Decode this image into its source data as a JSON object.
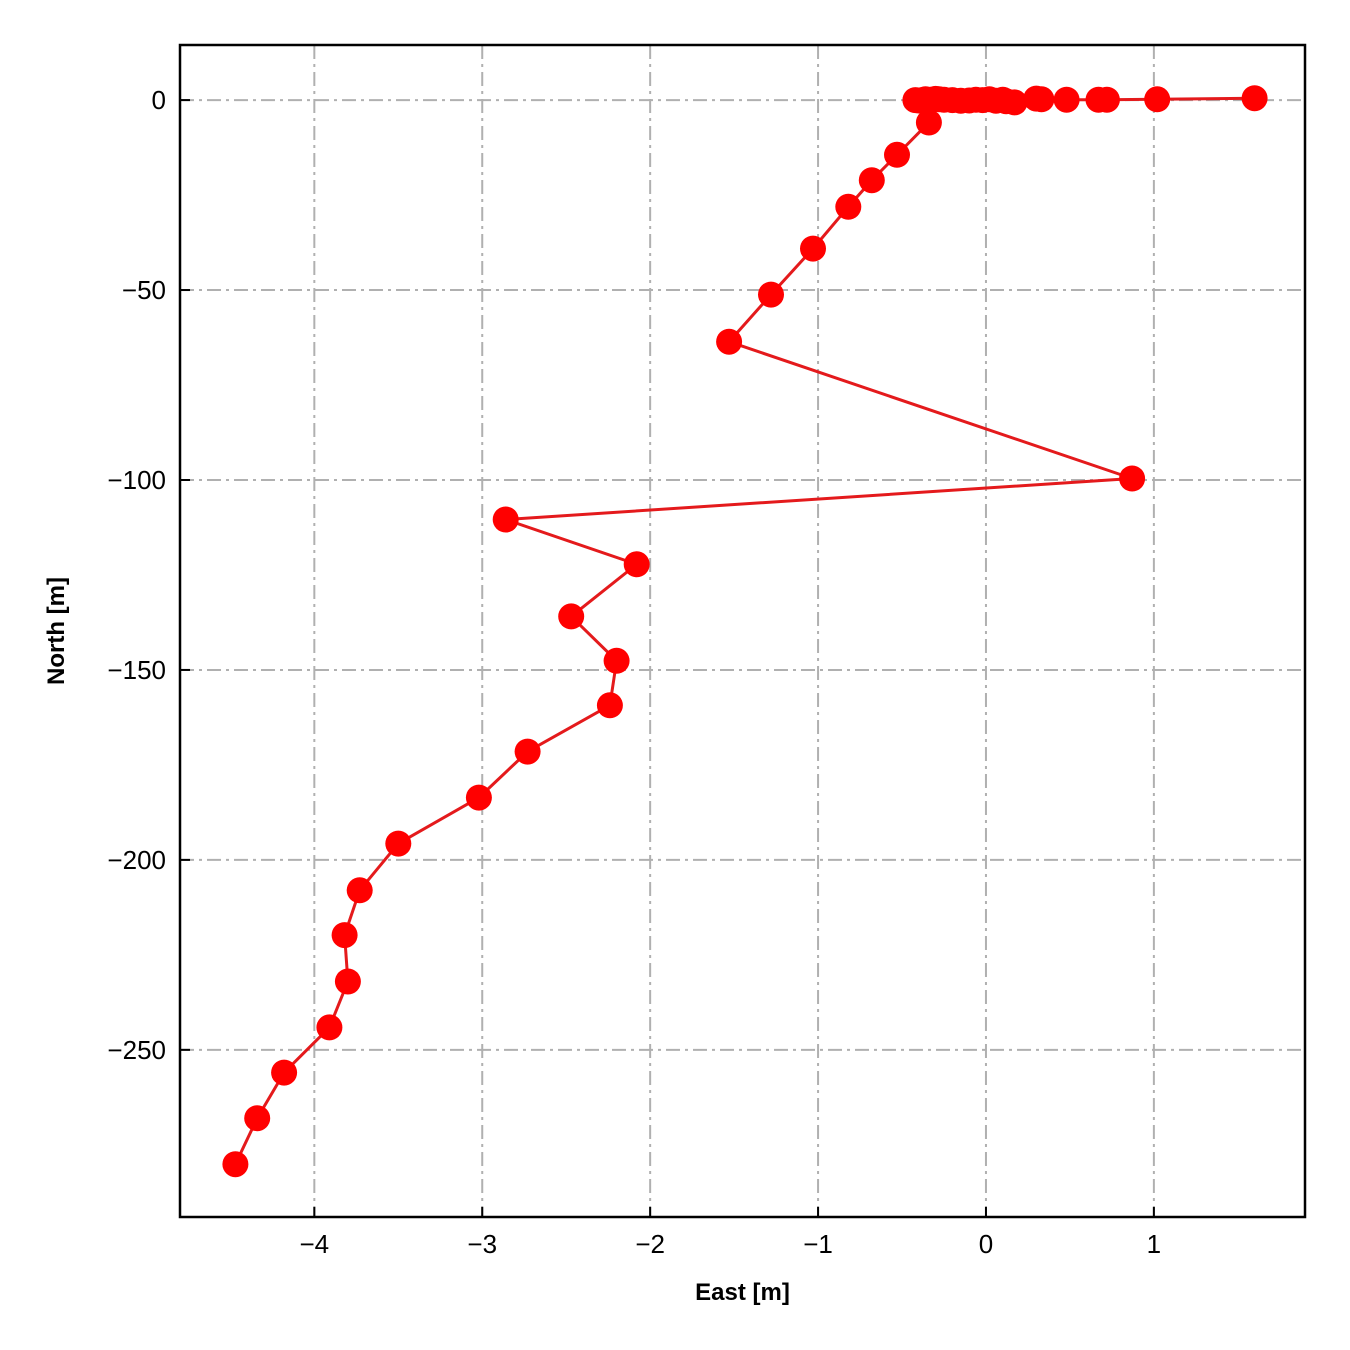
{
  "chart_data": {
    "type": "line",
    "title": "",
    "xlabel": "East [m]",
    "ylabel": "North [m]",
    "xlim": [
      -4.8,
      1.9
    ],
    "ylim": [
      -294,
      14.5
    ],
    "xticks": [
      -4,
      -3,
      -2,
      -1,
      0,
      1
    ],
    "yticks": [
      0,
      -50,
      -100,
      -150,
      -200,
      -250
    ],
    "xtick_labels": [
      "−4",
      "−3",
      "−2",
      "−1",
      "0",
      "1"
    ],
    "ytick_labels": [
      "0",
      "−50",
      "−100",
      "−150",
      "−200",
      "−250"
    ],
    "grid": true,
    "legend": "none",
    "series": [
      {
        "color": "#ff0000",
        "line_color": "#e41a1c",
        "x": [
          1.6,
          1.02,
          0.72,
          0.67,
          0.48,
          0.33,
          0.3,
          0.17,
          0.12,
          0.1,
          0.06,
          0.02,
          -0.02,
          -0.06,
          -0.1,
          -0.15,
          -0.2,
          -0.25,
          -0.28,
          -0.3,
          -0.33,
          -0.36,
          -0.38,
          -0.4,
          -0.42,
          -0.34,
          -0.53,
          -0.68,
          -0.82,
          -1.03,
          -1.28,
          -1.53,
          0.87,
          -2.86,
          -2.08,
          -2.47,
          -2.2,
          -2.24,
          -2.73,
          -3.02,
          -3.5,
          -3.73,
          -3.82,
          -3.8,
          -3.91,
          -4.18,
          -4.34,
          -4.47
        ],
        "y": [
          0.5,
          0.2,
          0.1,
          0.1,
          0.1,
          0.2,
          0.4,
          -0.6,
          -0.3,
          0.1,
          -0.2,
          0.2,
          0.0,
          0.1,
          -0.1,
          -0.2,
          0.0,
          0.1,
          0.2,
          0.3,
          0.1,
          0.2,
          0.0,
          -0.1,
          0.0,
          -5.9,
          -14.4,
          -21.1,
          -28.1,
          -39.1,
          -51.2,
          -63.6,
          -99.6,
          -110.4,
          -122.2,
          -135.9,
          -147.6,
          -159.3,
          -171.5,
          -183.6,
          -195.7,
          -208.0,
          -219.8,
          -232.0,
          -244.1,
          -256.0,
          -268.0,
          -280.1
        ]
      }
    ]
  }
}
